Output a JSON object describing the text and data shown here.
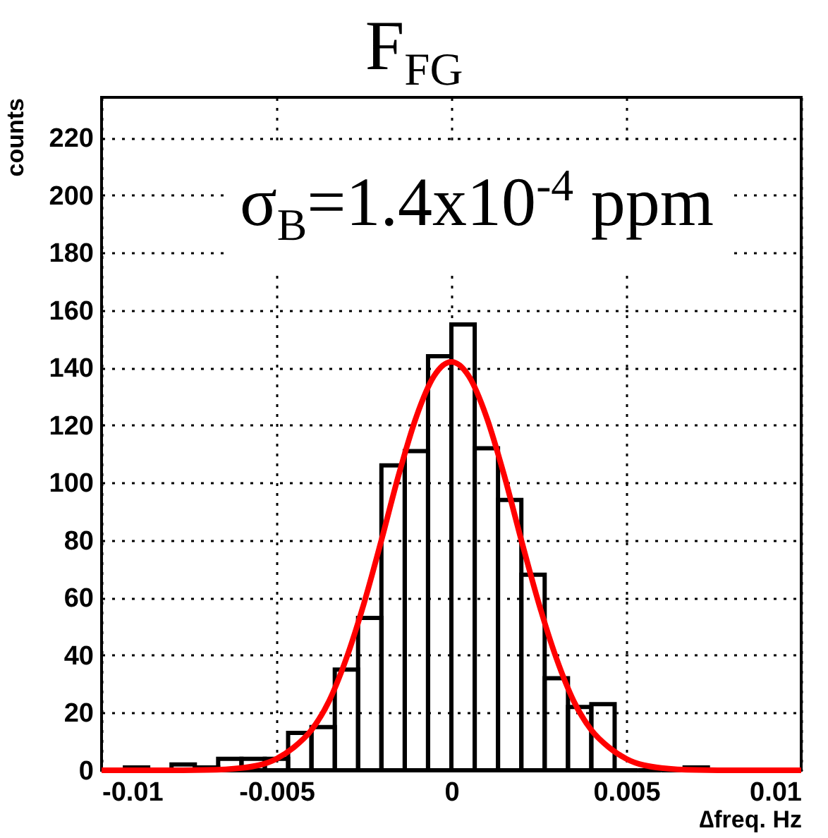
{
  "chart_data": {
    "type": "histogram",
    "title": "F$_{FG}$",
    "xlabel": "∆freq. Hz",
    "ylabel": "counts",
    "annotations": [
      "σ$_{B}$=1.4x10$^{-4}$ ppm"
    ],
    "bins": [
      -0.01,
      -0.009333,
      -0.008667,
      -0.008,
      -0.007333,
      -0.006667,
      -0.006,
      -0.005333,
      -0.004667,
      -0.004,
      -0.003333,
      -0.002667,
      -0.002,
      -0.001333,
      -0.000667,
      0,
      0.000667,
      0.001333,
      0.002,
      0.002667,
      0.003333,
      0.004,
      0.004667,
      0.005333,
      0.006,
      0.006667,
      0.007333,
      0.008,
      0.008667,
      0.009333,
      0.01
    ],
    "values": [
      0,
      1,
      0,
      2,
      1,
      4,
      4,
      4,
      13,
      15,
      35,
      53,
      106,
      111,
      144,
      155,
      112,
      94,
      68,
      32,
      22,
      23,
      0,
      0,
      0,
      1,
      0,
      0,
      0,
      0
    ],
    "color": "#000000",
    "series": [
      {
        "type": "line",
        "color": "#ff0000",
        "x": [
          -0.01,
          -0.008,
          -0.007,
          -0.006,
          -0.005,
          -0.0045,
          -0.004,
          -0.0035,
          -0.003,
          -0.0025,
          -0.002,
          -0.0015,
          -0.001,
          -0.0005,
          0,
          0.0005,
          0.001,
          0.0015,
          0.002,
          0.0025,
          0.003,
          0.0035,
          0.004,
          0.0045,
          0.005,
          0.006,
          0.007,
          0.008,
          0.01
        ],
        "values": [
          0,
          0,
          0.1,
          0.8,
          4,
          8,
          14,
          24,
          39,
          58,
          80,
          103,
          123,
          137,
          142,
          137,
          123,
          103,
          80,
          58,
          39,
          24,
          14,
          8,
          4,
          0.8,
          0.1,
          0,
          0
        ]
      }
    ],
    "xlim": [
      -0.01,
      0.01
    ],
    "xticks": [
      -0.01,
      -0.005,
      0,
      0.005,
      0.01
    ],
    "ylim": [
      0,
      234
    ],
    "yticks": [
      0,
      20,
      40,
      60,
      80,
      100,
      120,
      140,
      160,
      180,
      200,
      220
    ],
    "grid": true
  }
}
